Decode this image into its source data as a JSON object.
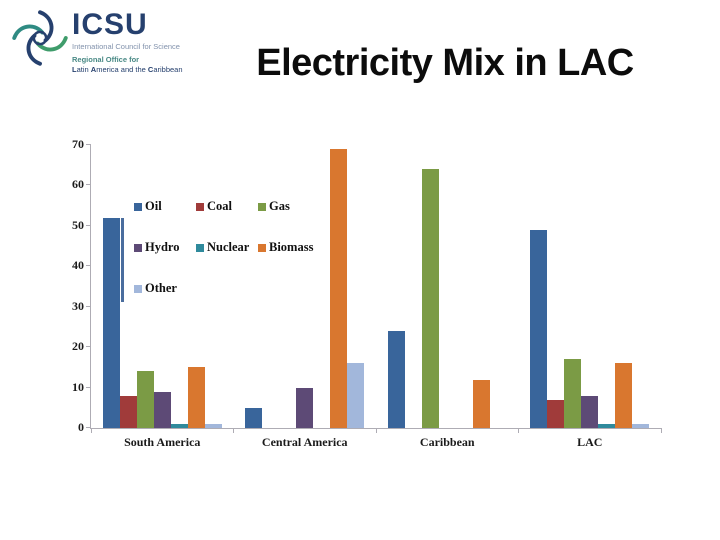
{
  "slide": {
    "title": "Electricity Mix in LAC"
  },
  "logo": {
    "acronym": "ICSU",
    "line1": "International Council for Science",
    "line2": "Regional Office for",
    "line3_parts": [
      [
        "L",
        true
      ],
      [
        "atin ",
        false
      ],
      [
        "A",
        true
      ],
      [
        "merica and the ",
        false
      ],
      [
        "C",
        true
      ],
      [
        "aribbean",
        false
      ]
    ],
    "navy": "#26406e",
    "teal": "#2f8b83",
    "green": "#3f9c6b"
  },
  "chart_data": {
    "type": "bar",
    "title": "",
    "xlabel": "",
    "ylabel": "",
    "categories": [
      "South America",
      "Central America",
      "Caribbean",
      "LAC"
    ],
    "series": [
      {
        "name": "Oil",
        "color": "#39659b",
        "values": [
          52,
          5,
          24,
          49
        ]
      },
      {
        "name": "Coal",
        "color": "#a03b3a",
        "values": [
          8,
          0,
          0,
          7
        ]
      },
      {
        "name": "Gas",
        "color": "#7b9b45",
        "values": [
          14,
          0,
          64,
          17
        ]
      },
      {
        "name": "Hydro",
        "color": "#5d4a76",
        "values": [
          9,
          10,
          0,
          8
        ]
      },
      {
        "name": "Nuclear",
        "color": "#2f8a9c",
        "values": [
          1,
          0,
          0,
          1
        ]
      },
      {
        "name": "Biomass",
        "color": "#d9772f",
        "values": [
          15,
          69,
          12,
          16
        ]
      },
      {
        "name": "Other",
        "color": "#a2b7db",
        "values": [
          1,
          16,
          0,
          1
        ]
      }
    ],
    "ylim": [
      0,
      70
    ],
    "yticks": [
      0,
      10,
      20,
      30,
      40,
      50,
      60,
      70
    ],
    "grid": false,
    "legend_position": "inside-top-left",
    "legend_rows": [
      [
        "Oil",
        "Coal",
        "Gas"
      ],
      [
        "Hydro",
        "Nuclear",
        "Biomass"
      ],
      [
        "Other"
      ]
    ]
  }
}
